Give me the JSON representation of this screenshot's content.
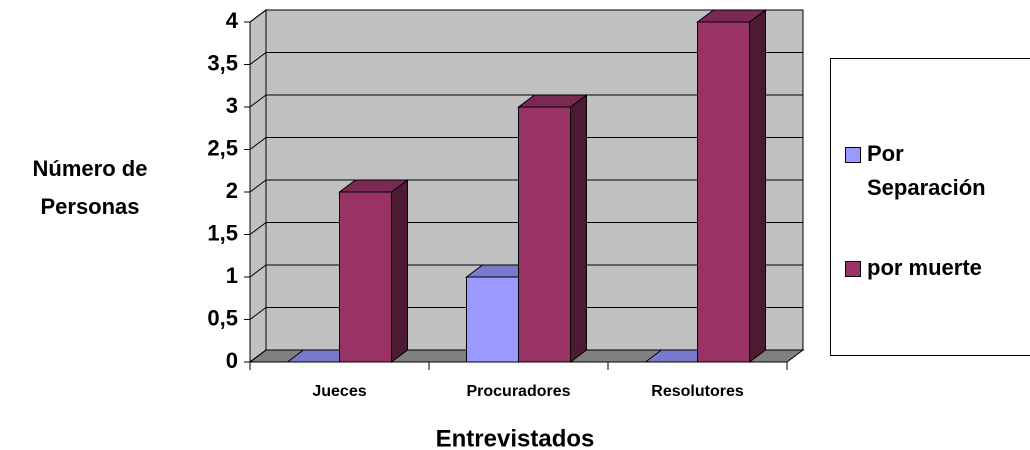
{
  "chart_data": {
    "type": "bar3d",
    "x_label": "Entrevistados",
    "y_label": "Número de Personas",
    "categories": [
      "Jueces",
      "Procuradores",
      "Resolutores"
    ],
    "series": [
      {
        "name": "Por Separación",
        "color": "#9999ff",
        "values": [
          0,
          1,
          0
        ]
      },
      {
        "name": "por muerte",
        "color": "#993366",
        "values": [
          2,
          3,
          4
        ]
      }
    ],
    "ylim": [
      0,
      4
    ],
    "yticks": [
      0,
      {
        "value": 0.5,
        "label": "0,5"
      },
      1,
      {
        "value": 1.5,
        "label": "1,5"
      },
      2,
      {
        "value": 2.5,
        "label": "2,5"
      },
      3,
      {
        "value": 3.5,
        "label": "3,5"
      },
      4
    ],
    "grid": true,
    "legend": "right"
  }
}
